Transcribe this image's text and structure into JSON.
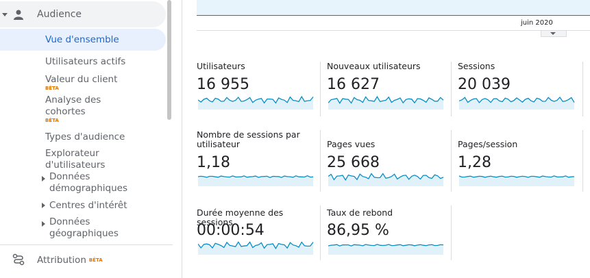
{
  "sidebar": {
    "items": [
      {
        "label": "Audience"
      },
      {
        "label": "Vue d'ensemble"
      },
      {
        "label": "Utilisateurs actifs"
      },
      {
        "label": "Valeur du client",
        "badge": "BÊTA"
      },
      {
        "label": "Analyse des cohortes",
        "badge": "BÊTA"
      },
      {
        "label": "Types d'audience"
      },
      {
        "label": "Explorateur d'utilisateurs"
      },
      {
        "label": "Données démographiques"
      },
      {
        "label": "Centres d'intérêt"
      },
      {
        "label": "Données géographiques"
      },
      {
        "label": "Attribution",
        "badge": "BÊTA"
      }
    ]
  },
  "chart": {
    "axis_label": "juin 2020"
  },
  "metrics": [
    {
      "label": "Utilisateurs",
      "value": "16 955"
    },
    {
      "label": "Nouveaux utilisateurs",
      "value": "16 627"
    },
    {
      "label": "Sessions",
      "value": "20 039"
    },
    {
      "label": "Nombre de sessions par utilisateur",
      "value": "1,18"
    },
    {
      "label": "Pages vues",
      "value": "25 668"
    },
    {
      "label": "Pages/session",
      "value": "1,28"
    },
    {
      "label": "Durée moyenne des sessions",
      "value": "00:00:54"
    },
    {
      "label": "Taux de rebond",
      "value": "86,95 %"
    }
  ]
}
